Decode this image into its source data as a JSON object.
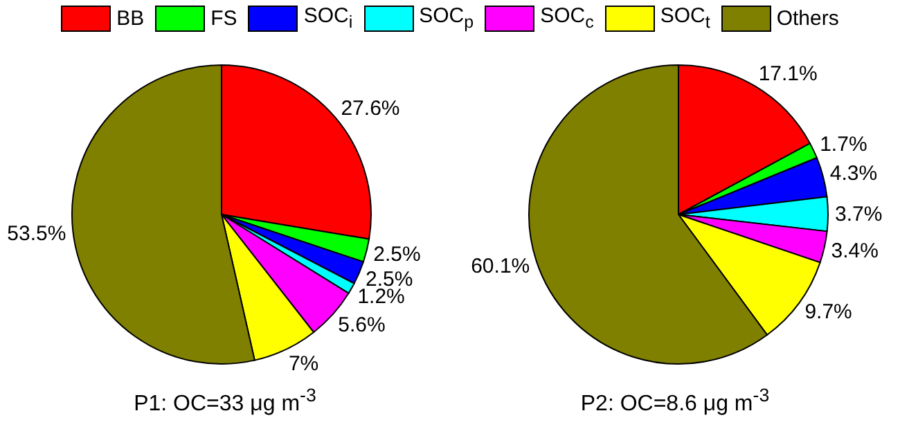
{
  "chart_data": [
    {
      "type": "pie",
      "title": "P1: OC=33 μg m$^{-3}$",
      "categories": [
        "BB",
        "FS",
        "SOC$_{i}$",
        "SOC$_{p}$",
        "SOC$_{c}$",
        "SOC$_{t}$",
        "Others"
      ],
      "values": [
        27.6,
        2.5,
        2.5,
        1.2,
        5.6,
        7,
        53.5
      ],
      "value_labels": [
        "27.6%",
        "2.5%",
        "2.5%",
        "1.2%",
        "5.6%",
        "7%",
        "53.5%"
      ],
      "colors": [
        "#ff0000",
        "#00ff00",
        "#0000ff",
        "#00ffff",
        "#ff00ff",
        "#ffff00",
        "#808000"
      ],
      "legend": "top"
    },
    {
      "type": "pie",
      "title": "P2: OC=8.6 μg m$^{-3}$",
      "categories": [
        null,
        null,
        null,
        null,
        null,
        null,
        null
      ],
      "values": [
        17.1,
        1.7,
        4.3,
        3.7,
        3.4,
        9.7,
        60.1
      ],
      "value_labels": [
        "17.1%",
        "1.7%",
        "4.3%",
        "3.7%",
        "3.4%",
        "9.7%",
        "60.1%"
      ],
      "colors": [
        "#ff0000",
        "#00ff00",
        "#0000ff",
        "#00ffff",
        "#ff00ff",
        "#ffff00",
        "#808000"
      ]
    }
  ]
}
